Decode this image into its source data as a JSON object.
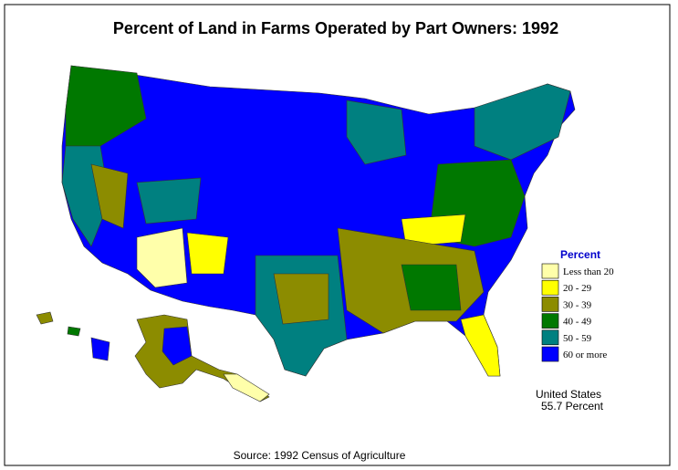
{
  "title": "Percent of Land in Farms Operated by Part Owners:  1992",
  "legend": {
    "title": "Percent",
    "items": [
      {
        "label": "Less than 20",
        "color": "#ffffaa"
      },
      {
        "label": "20  -  29",
        "color": "#ffff00"
      },
      {
        "label": "30  -  39",
        "color": "#8c8c00"
      },
      {
        "label": "40  -  49",
        "color": "#007800"
      },
      {
        "label": "50  -  59",
        "color": "#008080"
      },
      {
        "label": "60 or more",
        "color": "#0000ff"
      }
    ]
  },
  "summary": {
    "line1": "United States",
    "line2": "55.7 Percent"
  },
  "source": "Source:  1992 Census of Agriculture"
}
